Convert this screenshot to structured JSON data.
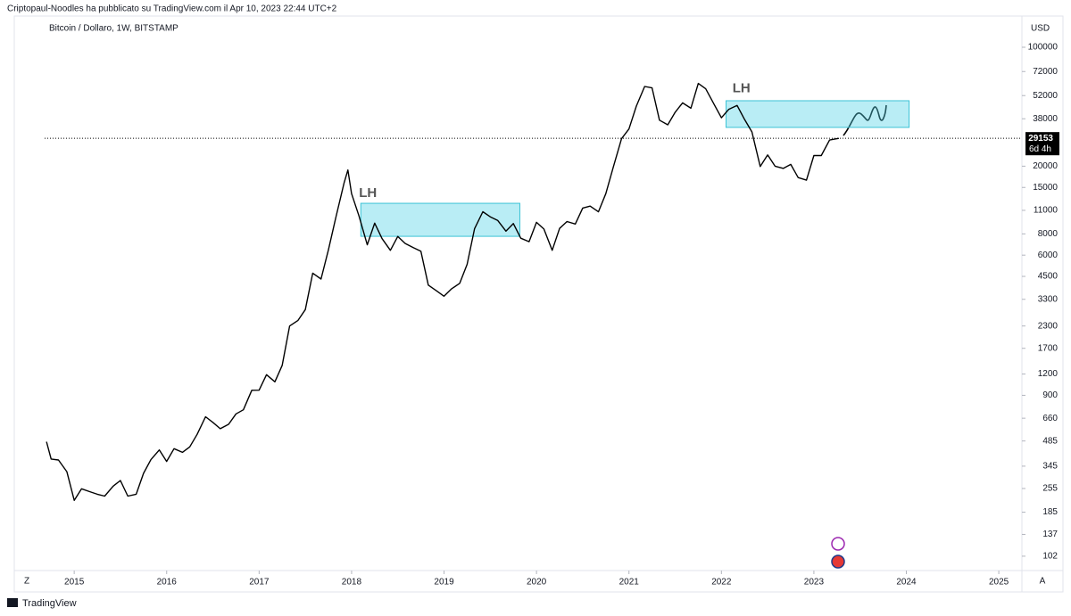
{
  "chart_data": {
    "type": "line",
    "header": "Criptopaul-Noodles ha pubblicato su TradingView.com il Apr 10, 2023 22:44 UTC+2",
    "title": "Bitcoin / Dollaro, 1W, BITSTAMP",
    "y_unit": "USD",
    "footer": "TradingView",
    "scale_buttons": [
      "Z",
      "A"
    ],
    "log_scale": true,
    "grid": false,
    "xlim": [
      2014.68,
      2025.25
    ],
    "xticks": [
      2015,
      2016,
      2017,
      2018,
      2019,
      2020,
      2021,
      2022,
      2023,
      2024,
      2025
    ],
    "ylim": [
      84,
      117000
    ],
    "yticks": [
      102,
      137,
      185,
      255,
      345,
      485,
      660,
      900,
      1200,
      1700,
      2300,
      3300,
      4500,
      6000,
      8000,
      11000,
      15000,
      20000,
      38000,
      52000,
      72000,
      100000
    ],
    "last_price": 29153,
    "countdown": "6d 4h",
    "x": [
      2014.7,
      2014.75,
      2014.83,
      2014.92,
      2015.0,
      2015.08,
      2015.17,
      2015.25,
      2015.33,
      2015.42,
      2015.5,
      2015.58,
      2015.67,
      2015.75,
      2015.83,
      2015.92,
      2016.0,
      2016.08,
      2016.17,
      2016.25,
      2016.33,
      2016.42,
      2016.5,
      2016.58,
      2016.67,
      2016.75,
      2016.83,
      2016.92,
      2017.0,
      2017.08,
      2017.17,
      2017.25,
      2017.33,
      2017.42,
      2017.5,
      2017.58,
      2017.67,
      2017.75,
      2017.83,
      2017.92,
      2017.96,
      2018.0,
      2018.08,
      2018.17,
      2018.25,
      2018.33,
      2018.42,
      2018.5,
      2018.58,
      2018.67,
      2018.75,
      2018.83,
      2018.92,
      2019.0,
      2019.08,
      2019.17,
      2019.25,
      2019.33,
      2019.42,
      2019.5,
      2019.58,
      2019.67,
      2019.75,
      2019.83,
      2019.92,
      2020.0,
      2020.08,
      2020.17,
      2020.25,
      2020.33,
      2020.42,
      2020.5,
      2020.58,
      2020.67,
      2020.75,
      2020.83,
      2020.92,
      2021.0,
      2021.08,
      2021.17,
      2021.25,
      2021.33,
      2021.42,
      2021.5,
      2021.58,
      2021.67,
      2021.75,
      2021.83,
      2021.92,
      2022.0,
      2022.08,
      2022.17,
      2022.25,
      2022.33,
      2022.42,
      2022.5,
      2022.58,
      2022.67,
      2022.75,
      2022.83,
      2022.92,
      2023.0,
      2023.08,
      2023.17,
      2023.27
    ],
    "series": [
      {
        "name": "BTCUSD",
        "color": "#000000",
        "values": [
          480,
          380,
          375,
          320,
          217,
          254,
          244,
          236,
          230,
          263,
          284,
          230,
          236,
          313,
          377,
          430,
          368,
          437,
          416,
          448,
          531,
          673,
          624,
          573,
          608,
          700,
          740,
          963,
          965,
          1190,
          1080,
          1350,
          2300,
          2480,
          2870,
          4700,
          4340,
          6450,
          10000,
          16000,
          19000,
          13800,
          10200,
          6900,
          9250,
          7500,
          6400,
          7730,
          7030,
          6630,
          6320,
          4000,
          3700,
          3440,
          3800,
          4100,
          5300,
          8570,
          10800,
          10080,
          9600,
          8300,
          9200,
          7550,
          7200,
          9350,
          8540,
          6400,
          8620,
          9450,
          9140,
          11350,
          11650,
          10780,
          13800,
          19700,
          29000,
          33100,
          45100,
          58800,
          57700,
          37300,
          35000,
          41500,
          47100,
          43800,
          61300,
          57000,
          46300,
          38500,
          43200,
          45500,
          37700,
          31800,
          19900,
          23300,
          20000,
          19400,
          20500,
          17150,
          16550,
          23100,
          23100,
          28500,
          29153
        ]
      }
    ],
    "zones": [
      {
        "x0": 2018.1,
        "x1": 2019.82,
        "low": 7740,
        "high": 12100
      },
      {
        "x0": 2022.05,
        "x1": 2024.03,
        "low": 33800,
        "high": 48500
      }
    ],
    "annotations": [
      {
        "text": "LH",
        "x": 2018.08,
        "y": 13800
      },
      {
        "text": "LH",
        "x": 2022.12,
        "y": 57000
      }
    ]
  }
}
